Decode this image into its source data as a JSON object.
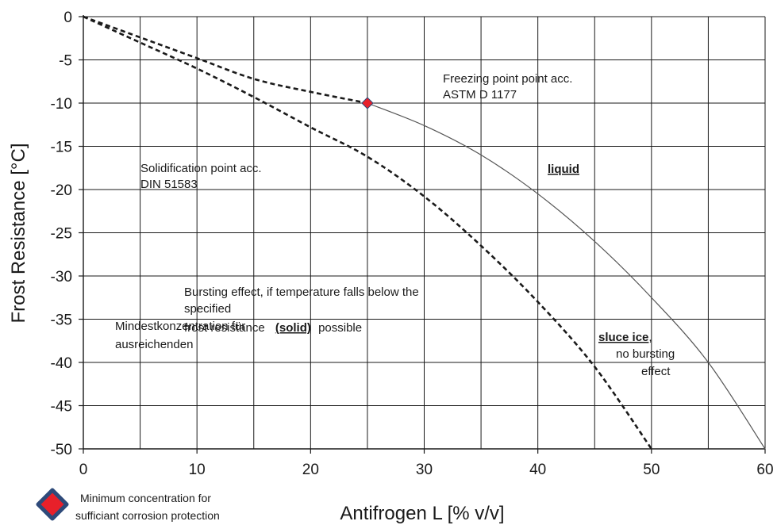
{
  "chart_data": {
    "type": "line",
    "xlabel": "Antifrogen L [% v/v]",
    "ylabel": "Frost Resistance [°C]",
    "xlim": [
      0,
      60
    ],
    "ylim": [
      -50,
      0
    ],
    "x_ticks": [
      0,
      10,
      20,
      30,
      40,
      50,
      60
    ],
    "y_ticks": [
      0,
      -5,
      -10,
      -15,
      -20,
      -25,
      -30,
      -35,
      -40,
      -45,
      -50
    ],
    "grid": true,
    "series": [
      {
        "style": "dashed",
        "color": "#1a1a1a",
        "x": [
          0,
          5,
          10,
          15,
          20,
          25
        ],
        "y": [
          0,
          -2.4,
          -4.8,
          -7.2,
          -8.7,
          -10
        ]
      },
      {
        "style": "solid",
        "color": "#555555",
        "x": [
          25,
          30,
          35,
          40,
          45,
          50,
          55,
          60
        ],
        "y": [
          -10,
          -12.6,
          -16,
          -20.5,
          -26,
          -32.5,
          -40,
          -50
        ]
      },
      {
        "style": "dashed",
        "color": "#1a1a1a",
        "x": [
          0,
          5,
          10,
          15,
          20,
          25,
          30,
          35,
          40,
          45,
          50
        ],
        "y": [
          0,
          -3,
          -6,
          -9.3,
          -12.8,
          -16.2,
          -20.8,
          -26.5,
          -33,
          -40.5,
          -50
        ]
      }
    ],
    "marker_point": {
      "x": 25,
      "y": -10,
      "color": "#e8202a",
      "edge": "#2e4a7a"
    },
    "annotations": {
      "freezing": [
        "Freezing point point acc.",
        "ASTM  D 1177"
      ],
      "solidification": [
        "Solidification point acc.",
        "DIN 51583"
      ],
      "liquid": "liquid",
      "bursting_line1": "Bursting effect, if temperature  falls  below the",
      "bursting_line2": "specified",
      "bursting_line3_pre": "frost resistance",
      "bursting_solid": "(solid)",
      "bursting_line3_post": "possible",
      "overlap_line1": "Mindestkonzentration für",
      "overlap_line2": "ausreichenden",
      "sluce_bold": "sluce ice",
      "sluce_comma": ",",
      "sluce_line2": "no bursting",
      "sluce_line3": "effect"
    },
    "legend": {
      "label_line1": "Minimum concentration for",
      "label_line2": "sufficiant corrosion protection"
    }
  }
}
